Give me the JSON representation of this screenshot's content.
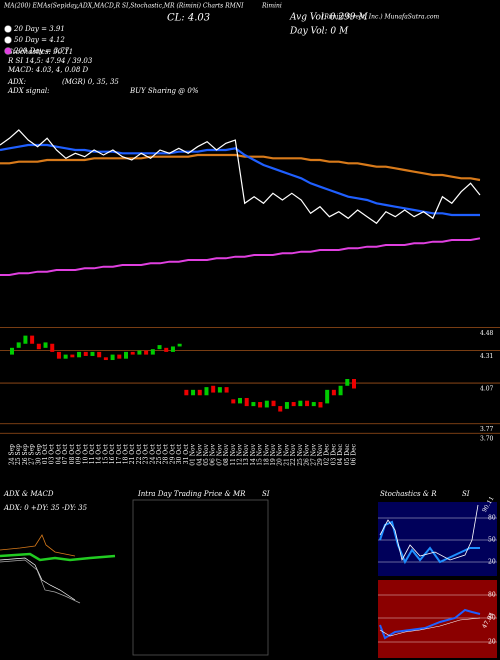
{
  "header": {
    "line1": "MA(200) EMAs(Sep)day,ADX,MACD,R SI,Stochastic,MR (Rimini) Charts RMNI",
    "company": "Rimini",
    "close": "CL: 4.03",
    "avg_vol": "Avg Vol: 0.299 M",
    "day_vol": "Day Vol: 0  M",
    "site": "(Rimini Street, Inc.) MunafaSutra.com",
    "stochastics": "Stochastics: 90.11",
    "rsi": "R        SI 14,5: 47.94 / 39.03",
    "macd": "MACD: 4.03, 4, 0.08 D",
    "adx": "ADX:",
    "adx_values": "(MGR) 0,  35,  35",
    "adx_signal": "ADX  signal:",
    "signal": "BUY Sharing @ 0%"
  },
  "chart_data": [
    {
      "type": "line",
      "ylim": [
        3.4,
        4.6
      ],
      "series": [
        {
          "color": "#ffffff",
          "values": [
            4.33,
            4.37,
            4.42,
            4.36,
            4.32,
            4.37,
            4.3,
            4.25,
            4.28,
            4.26,
            4.3,
            4.27,
            4.3,
            4.26,
            4.24,
            4.28,
            4.25,
            4.3,
            4.28,
            4.31,
            4.28,
            4.32,
            4.35,
            4.3,
            4.34,
            4.36,
            3.98,
            4.02,
            3.98,
            4.04,
            4.0,
            4.04,
            4.0,
            3.92,
            3.96,
            3.9,
            3.93,
            3.89,
            3.94,
            3.9,
            3.86,
            3.93,
            3.9,
            3.94,
            3.9,
            3.93,
            3.89,
            4.02,
            3.98,
            4.05,
            4.1,
            4.03
          ]
        },
        {
          "name": "20 Day = 3.91",
          "color": "#1f5fff",
          "values": [
            4.3,
            4.31,
            4.32,
            4.33,
            4.33,
            4.33,
            4.32,
            4.31,
            4.3,
            4.3,
            4.29,
            4.29,
            4.29,
            4.28,
            4.28,
            4.28,
            4.28,
            4.28,
            4.28,
            4.29,
            4.29,
            4.29,
            4.3,
            4.3,
            4.3,
            4.31,
            4.27,
            4.24,
            4.21,
            4.19,
            4.17,
            4.15,
            4.13,
            4.1,
            4.08,
            4.06,
            4.04,
            4.02,
            4.01,
            4.0,
            3.98,
            3.97,
            3.96,
            3.95,
            3.94,
            3.93,
            3.92,
            3.92,
            3.91,
            3.91,
            3.91,
            3.91
          ]
        },
        {
          "name": "50 Day = 4.12",
          "color": "#d87a1a",
          "values": [
            4.22,
            4.22,
            4.23,
            4.23,
            4.23,
            4.24,
            4.24,
            4.24,
            4.24,
            4.24,
            4.25,
            4.25,
            4.25,
            4.25,
            4.25,
            4.25,
            4.26,
            4.26,
            4.26,
            4.26,
            4.26,
            4.27,
            4.27,
            4.27,
            4.27,
            4.27,
            4.26,
            4.26,
            4.26,
            4.25,
            4.25,
            4.25,
            4.25,
            4.24,
            4.24,
            4.23,
            4.23,
            4.22,
            4.22,
            4.21,
            4.2,
            4.2,
            4.19,
            4.18,
            4.17,
            4.16,
            4.15,
            4.15,
            4.14,
            4.13,
            4.13,
            4.12
          ]
        },
        {
          "name": "200 Day = 3.77",
          "color": "#e040e0",
          "values": [
            3.55,
            3.55,
            3.56,
            3.56,
            3.57,
            3.57,
            3.58,
            3.58,
            3.58,
            3.59,
            3.59,
            3.6,
            3.6,
            3.61,
            3.61,
            3.61,
            3.62,
            3.62,
            3.63,
            3.63,
            3.64,
            3.64,
            3.64,
            3.65,
            3.65,
            3.66,
            3.66,
            3.67,
            3.67,
            3.67,
            3.68,
            3.68,
            3.69,
            3.69,
            3.7,
            3.7,
            3.7,
            3.71,
            3.71,
            3.72,
            3.72,
            3.73,
            3.73,
            3.73,
            3.74,
            3.74,
            3.75,
            3.75,
            3.76,
            3.76,
            3.76,
            3.77
          ]
        }
      ]
    },
    {
      "type": "candlestick",
      "ylim": [
        3.65,
        4.55
      ],
      "yticks": [
        4.48,
        4.31,
        4.07,
        3.77,
        {
          "value": 3.7,
          "label": "3.70"
        }
      ],
      "categories": [
        "24 Sep",
        "25 Sep",
        "26 Sep",
        "27 Sep",
        "30 Sep",
        "01 Oct",
        "03 Oct",
        "04 Oct",
        "07 Oct",
        "08 Oct",
        "09 Oct",
        "10 Oct",
        "11 Oct",
        "14 Oct",
        "15 Oct",
        "16 Oct",
        "17 Oct",
        "18 Oct",
        "21 Oct",
        "22 Oct",
        "23 Oct",
        "24 Oct",
        "25 Oct",
        "28 Oct",
        "29 Oct",
        "30 Oct",
        "31 Oct",
        "01 Nov",
        "04 Nov",
        "05 Nov",
        "06 Nov",
        "07 Nov",
        "08 Nov",
        "11 Nov",
        "12 Nov",
        "13 Nov",
        "14 Nov",
        "15 Nov",
        "18 Nov",
        "19 Nov",
        "20 Nov",
        "21 Nov",
        "22 Nov",
        "25 Nov",
        "26 Nov",
        "27 Nov",
        "29 Nov",
        "02 Dec",
        "03 Dec",
        "04 Dec",
        "05 Dec",
        "06 Dec"
      ],
      "open": [
        4.28,
        4.33,
        4.36,
        4.42,
        4.36,
        4.33,
        4.36,
        4.3,
        4.25,
        4.28,
        4.26,
        4.3,
        4.27,
        4.3,
        4.26,
        4.24,
        4.28,
        4.25,
        4.3,
        4.28,
        4.31,
        4.28,
        4.32,
        4.33,
        4.3,
        4.34,
        4.02,
        3.98,
        4.02,
        3.98,
        4.05,
        4.0,
        4.04,
        3.95,
        3.92,
        3.96,
        3.9,
        3.93,
        3.89,
        3.94,
        3.9,
        3.88,
        3.93,
        3.9,
        3.94,
        3.9,
        3.93,
        3.92,
        4.02,
        3.98,
        4.05,
        4.1
      ],
      "close": [
        4.33,
        4.37,
        4.42,
        4.36,
        4.32,
        4.37,
        4.3,
        4.25,
        4.28,
        4.26,
        4.3,
        4.27,
        4.3,
        4.26,
        4.24,
        4.28,
        4.25,
        4.3,
        4.28,
        4.31,
        4.28,
        4.32,
        4.35,
        4.3,
        4.34,
        4.36,
        3.98,
        4.02,
        3.98,
        4.04,
        4.0,
        4.04,
        4.0,
        3.92,
        3.96,
        3.9,
        3.93,
        3.89,
        3.94,
        3.9,
        3.86,
        3.93,
        3.9,
        3.94,
        3.9,
        3.93,
        3.89,
        4.02,
        3.98,
        4.05,
        4.1,
        4.03
      ],
      "up_color": "#00cc00",
      "down_color": "#ee0000"
    }
  ],
  "panels": {
    "adx_title": "ADX  & MACD",
    "adx_label": "ADX: 0  +DY: 35  -DY: 35",
    "intraday_title": "Intra  Day Trading Price  & MR",
    "intraday_si": "SI",
    "stoch_title": "Stochastics & R",
    "stoch_si": "SI",
    "stoch_value": "90.11",
    "stoch_ticks": [
      "80",
      "50",
      "20"
    ],
    "rsi_ticks": [
      "80",
      "50",
      "20"
    ],
    "rsi_value": "47.94"
  }
}
